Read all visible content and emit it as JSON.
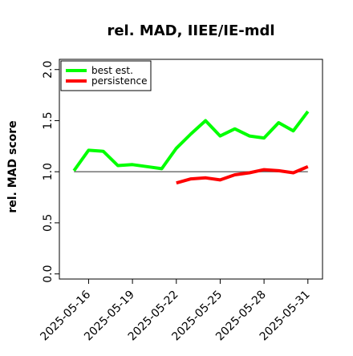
{
  "chart_data": {
    "type": "line",
    "title": "rel. MAD, IIEE/IE-mdl",
    "xlabel": "",
    "ylabel": "rel. MAD score",
    "x_ticks": [
      "2025-05-16",
      "2025-05-19",
      "2025-05-22",
      "2025-05-25",
      "2025-05-28",
      "2025-05-31"
    ],
    "y_ticks": [
      "0.0",
      "0.5",
      "1.0",
      "1.5",
      "2.0"
    ],
    "xlim": [
      "2025-05-14",
      "2025-06-01"
    ],
    "ylim": [
      -0.05,
      2.1
    ],
    "grid": false,
    "legend_position": "top-left",
    "reference_line": {
      "y": 1.0,
      "from": "2025-05-15",
      "to": "2025-05-31",
      "color": "#666666"
    },
    "series": [
      {
        "name": "best est.",
        "color": "#00ff00",
        "x": [
          "2025-05-15",
          "2025-05-16",
          "2025-05-17",
          "2025-05-18",
          "2025-05-19",
          "2025-05-20",
          "2025-05-21",
          "2025-05-22",
          "2025-05-23",
          "2025-05-24",
          "2025-05-25",
          "2025-05-26",
          "2025-05-27",
          "2025-05-28",
          "2025-05-29",
          "2025-05-30",
          "2025-05-31"
        ],
        "values": [
          1.01,
          1.21,
          1.2,
          1.06,
          1.07,
          1.05,
          1.03,
          1.23,
          1.37,
          1.5,
          1.35,
          1.42,
          1.35,
          1.33,
          1.48,
          1.4,
          1.59
        ]
      },
      {
        "name": "persistence",
        "color": "#ff0000",
        "x": [
          "2025-05-22",
          "2025-05-23",
          "2025-05-24",
          "2025-05-25",
          "2025-05-26",
          "2025-05-27",
          "2025-05-28",
          "2025-05-29",
          "2025-05-30",
          "2025-05-31"
        ],
        "values": [
          0.89,
          0.93,
          0.94,
          0.92,
          0.97,
          0.99,
          1.02,
          1.01,
          0.99,
          1.05
        ]
      }
    ]
  }
}
